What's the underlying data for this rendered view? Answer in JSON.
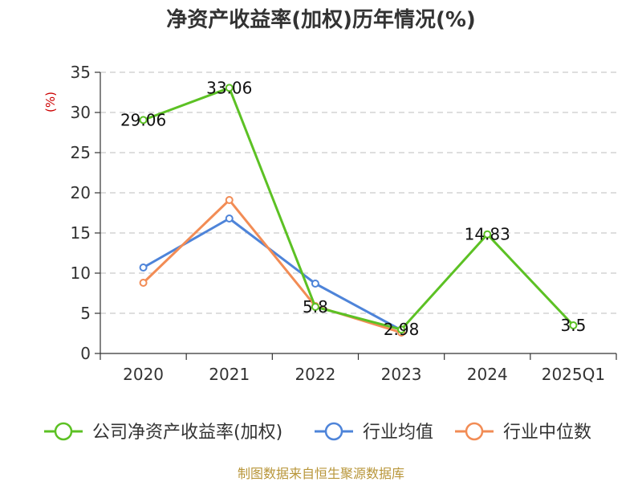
{
  "chart_data": {
    "type": "line",
    "title": "净资产收益率(加权)历年情况(%)",
    "ylabel": "(%)",
    "categories": [
      "2020",
      "2021",
      "2022",
      "2023",
      "2024",
      "2025Q1"
    ],
    "ylim": [
      0,
      35
    ],
    "yticks": [
      0,
      5,
      10,
      15,
      20,
      25,
      30,
      35
    ],
    "grid": "horizontal-dashed",
    "legend_position": "bottom",
    "series": [
      {
        "name": "公司净资产收益率(加权)",
        "color": "#5cc124",
        "values": [
          29.06,
          33.06,
          5.8,
          2.98,
          14.83,
          3.5
        ],
        "labels": [
          "29.06",
          "33.06",
          "5.8",
          "2.98",
          "14.83",
          "3.5"
        ]
      },
      {
        "name": "行业均值",
        "color": "#4e84d9",
        "values": [
          10.7,
          16.8,
          8.7,
          2.9,
          null,
          null
        ]
      },
      {
        "name": "行业中位数",
        "color": "#f28c55",
        "values": [
          8.8,
          19.1,
          5.9,
          2.6,
          null,
          null
        ]
      }
    ]
  },
  "footer": {
    "source": "制图数据来自恒生聚源数据库"
  }
}
